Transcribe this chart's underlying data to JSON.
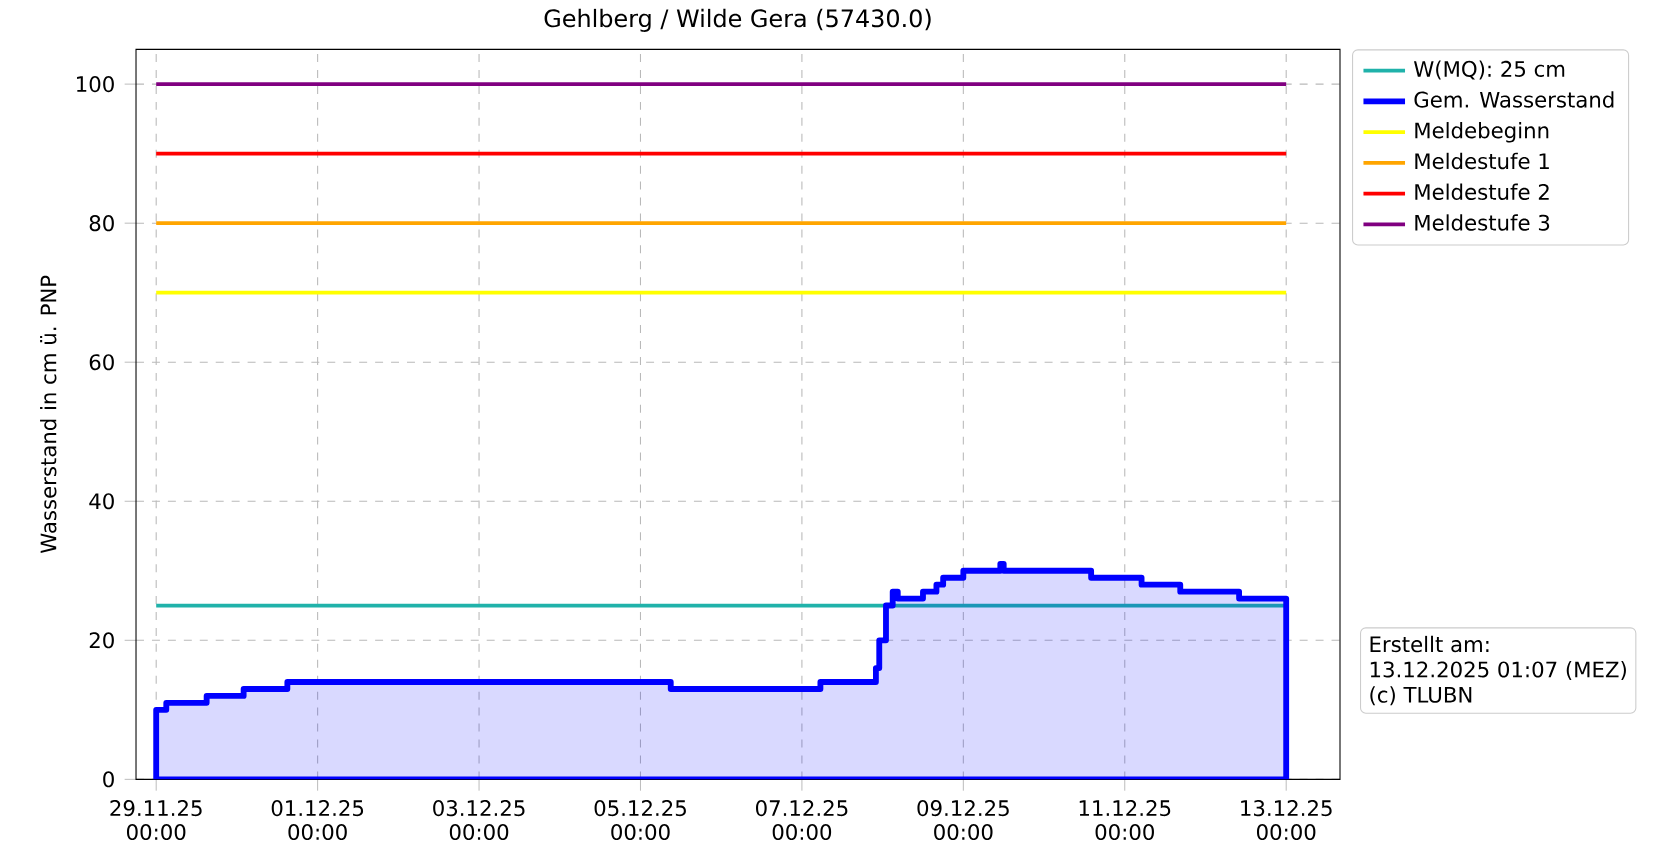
{
  "chart_data": {
    "type": "line",
    "title": "Gehlberg / Wilde Gera (57430.0)",
    "ylabel": "Wasserstand in cm ü. PNP",
    "xlim": [
      "2025-11-28T18:00",
      "2025-12-13T16:00"
    ],
    "xticks": [
      {
        "value": "2025-11-29T00:00",
        "label": "29.11.25 00:00"
      },
      {
        "value": "2025-12-01T00:00",
        "label": "01.12.25 00:00"
      },
      {
        "value": "2025-12-03T00:00",
        "label": "03.12.25 00:00"
      },
      {
        "value": "2025-12-05T00:00",
        "label": "05.12.25 00:00"
      },
      {
        "value": "2025-12-07T00:00",
        "label": "07.12.25 00:00"
      },
      {
        "value": "2025-12-09T00:00",
        "label": "09.12.25 00:00"
      },
      {
        "value": "2025-12-11T00:00",
        "label": "11.12.25 00:00"
      },
      {
        "value": "2025-12-13T00:00",
        "label": "13.12.25 00:00"
      }
    ],
    "ylim": [
      0,
      105
    ],
    "yticks": [
      0,
      20,
      40,
      60,
      80,
      100
    ],
    "grid": true,
    "legend": "top right",
    "marker": "none",
    "series": [
      {
        "name": "W(MQ): 25 cm",
        "color": "#20b2aa",
        "x": [
          "2025-11-29T00:00",
          "2025-12-13T00:00"
        ],
        "values": [
          25,
          25
        ]
      },
      {
        "name": "Gem. Wasserstand",
        "type": "area",
        "color": "#0000ff",
        "x": [
          "2025-11-29T00:00",
          "2025-11-29T03:00",
          "2025-11-29T15:00",
          "2025-11-30T02:00",
          "2025-11-30T15:00",
          "2025-12-05T09:00",
          "2025-12-07T05:30",
          "2025-12-07T22:00",
          "2025-12-07T23:00",
          "2025-12-08T01:00",
          "2025-12-08T03:00",
          "2025-12-08T04:30",
          "2025-12-08T12:00",
          "2025-12-08T16:00",
          "2025-12-08T18:00",
          "2025-12-09T00:00",
          "2025-12-09T11:00",
          "2025-12-09T12:00",
          "2025-12-10T14:00",
          "2025-12-11T05:00",
          "2025-12-11T16:30",
          "2025-12-12T10:00",
          "2025-12-13T00:00"
        ],
        "values": [
          10,
          11,
          12,
          13,
          14,
          13,
          14,
          16,
          20,
          25,
          27,
          26,
          27,
          28,
          29,
          30,
          31,
          30,
          29,
          28,
          27,
          26,
          26
        ]
      },
      {
        "name": "Meldebeginn",
        "color": "#ffff00",
        "x": [
          "2025-11-29T00:00",
          "2025-12-13T00:00"
        ],
        "values": [
          70,
          70
        ]
      },
      {
        "name": "Meldestufe 1",
        "color": "#ffa500",
        "x": [
          "2025-11-29T00:00",
          "2025-12-13T00:00"
        ],
        "values": [
          80,
          80
        ]
      },
      {
        "name": "Meldestufe 2",
        "color": "#ff0000",
        "x": [
          "2025-11-29T00:00",
          "2025-12-13T00:00"
        ],
        "values": [
          90,
          90
        ]
      },
      {
        "name": "Meldestufe 3",
        "color": "#800080",
        "x": [
          "2025-11-29T00:00",
          "2025-12-13T00:00"
        ],
        "values": [
          100,
          100
        ]
      }
    ],
    "annotations": [
      "Erstellt am:",
      "13.12.2025 01:07 (MEZ)",
      "(c) TLUBN"
    ]
  }
}
